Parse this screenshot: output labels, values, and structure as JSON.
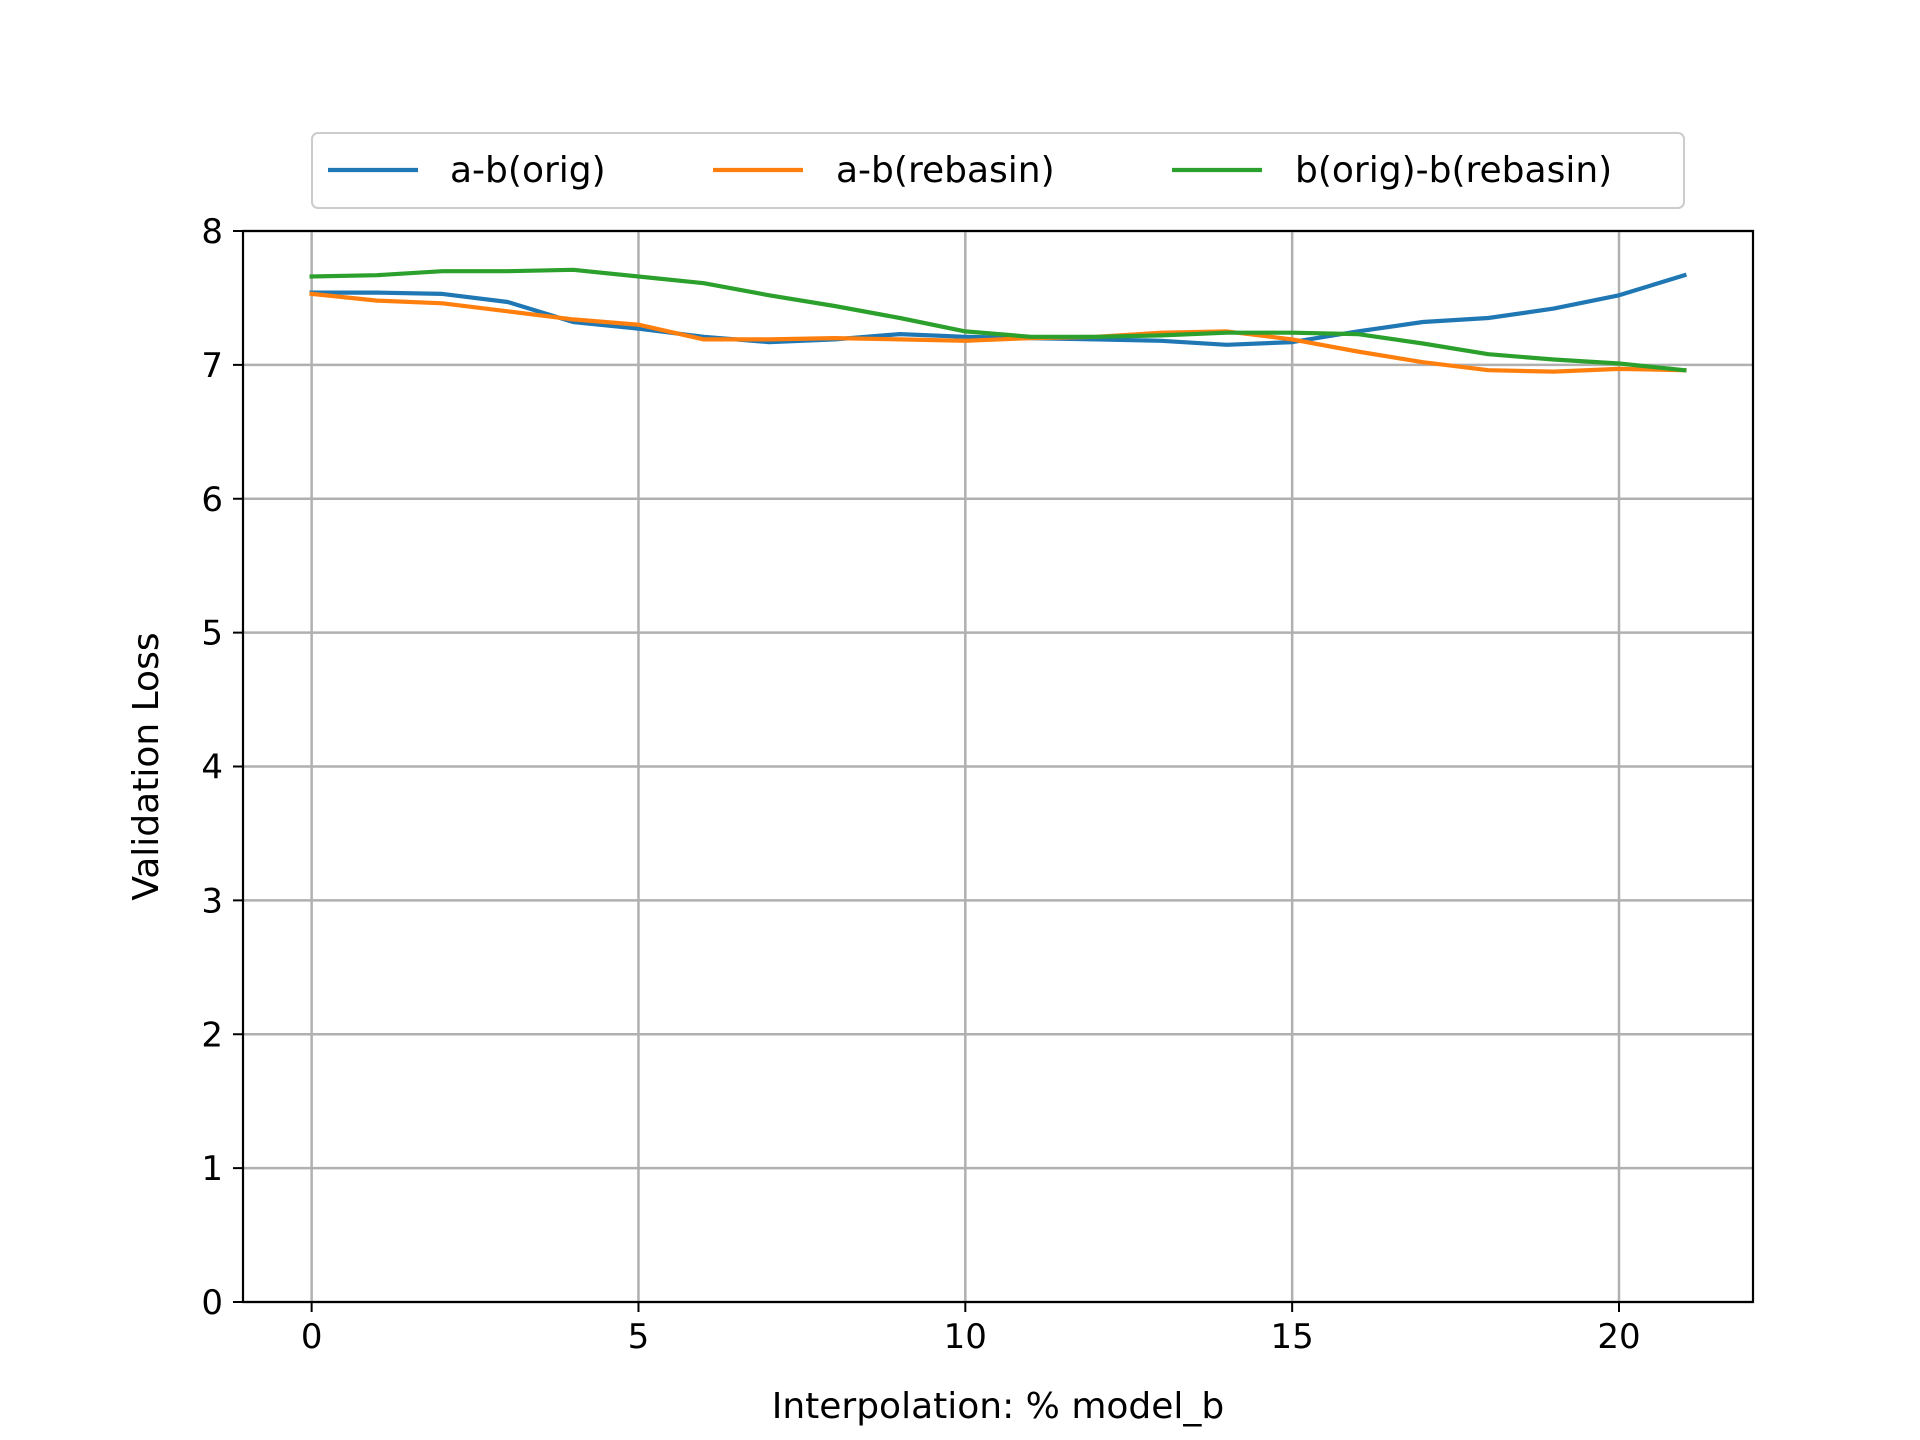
{
  "chart_data": {
    "type": "line",
    "xlabel": "Interpolation: % model_b",
    "ylabel": "Validation Loss",
    "xlim": [
      -1.05,
      22.05
    ],
    "ylim": [
      0,
      8
    ],
    "xticks": [
      0,
      5,
      10,
      15,
      20
    ],
    "yticks": [
      0,
      1,
      2,
      3,
      4,
      5,
      6,
      7,
      8
    ],
    "grid": true,
    "legend_placement": "top-center, above plot, 3 columns",
    "x": [
      0,
      1,
      2,
      3,
      4,
      5,
      6,
      7,
      8,
      9,
      10,
      11,
      12,
      13,
      14,
      15,
      16,
      17,
      18,
      19,
      20,
      21
    ],
    "series": [
      {
        "name": "a-b(orig)",
        "color": "#1f77b4",
        "values": [
          7.54,
          7.54,
          7.53,
          7.47,
          7.32,
          7.27,
          7.21,
          7.17,
          7.19,
          7.23,
          7.21,
          7.2,
          7.19,
          7.18,
          7.15,
          7.17,
          7.25,
          7.32,
          7.35,
          7.42,
          7.52,
          7.67
        ]
      },
      {
        "name": "a-b(rebasin)",
        "color": "#ff7f0e",
        "values": [
          7.53,
          7.48,
          7.46,
          7.4,
          7.34,
          7.3,
          7.19,
          7.19,
          7.2,
          7.19,
          7.18,
          7.2,
          7.21,
          7.24,
          7.25,
          7.19,
          7.1,
          7.02,
          6.96,
          6.95,
          6.97,
          6.96
        ]
      },
      {
        "name": "b(orig)-b(rebasin)",
        "color": "#2ca02c",
        "values": [
          7.66,
          7.67,
          7.7,
          7.7,
          7.71,
          7.66,
          7.61,
          7.52,
          7.44,
          7.35,
          7.25,
          7.21,
          7.21,
          7.22,
          7.24,
          7.24,
          7.23,
          7.16,
          7.08,
          7.04,
          7.01,
          6.96
        ]
      }
    ]
  }
}
